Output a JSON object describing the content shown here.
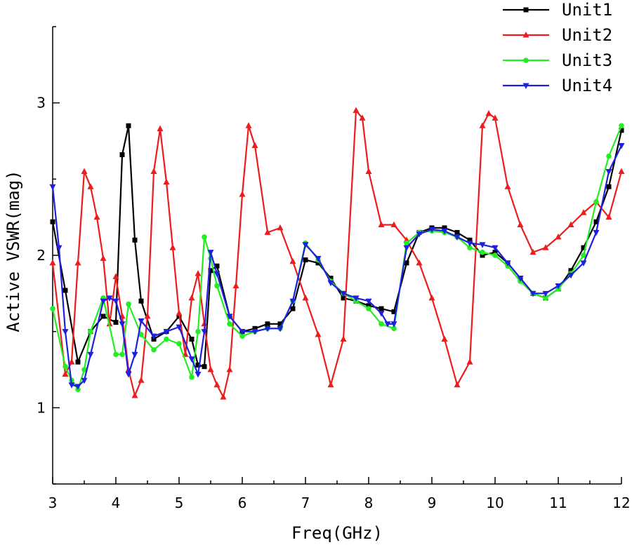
{
  "chart_data": {
    "type": "line",
    "title": "",
    "xlabel": "Freq(GHz)",
    "ylabel": "Active VSWR(mag)",
    "xlim": [
      3,
      12
    ],
    "ylim": [
      0.5,
      3.5
    ],
    "xticks": [
      3,
      4,
      5,
      6,
      7,
      8,
      9,
      10,
      11,
      12
    ],
    "xtick_labels": [
      "3",
      "4",
      "5",
      "6",
      "7",
      "8",
      "9",
      "10",
      "11",
      "12"
    ],
    "yticks": [
      1,
      2,
      3
    ],
    "ytick_labels": [
      "1",
      "2",
      "3"
    ],
    "grid": false,
    "legend_position": "top-right",
    "series": [
      {
        "name": "Unit1",
        "color": "#000000",
        "marker": "square",
        "x": [
          3.0,
          3.2,
          3.4,
          3.6,
          3.8,
          4.0,
          4.1,
          4.2,
          4.3,
          4.4,
          4.6,
          4.8,
          5.0,
          5.2,
          5.3,
          5.4,
          5.5,
          5.6,
          5.8,
          6.0,
          6.2,
          6.4,
          6.6,
          6.8,
          7.0,
          7.2,
          7.4,
          7.6,
          7.8,
          8.0,
          8.2,
          8.4,
          8.6,
          8.8,
          9.0,
          9.2,
          9.4,
          9.6,
          9.8,
          10.0,
          10.2,
          10.4,
          10.6,
          10.8,
          11.0,
          11.2,
          11.4,
          11.6,
          11.8,
          12.0
        ],
        "y": [
          2.22,
          1.77,
          1.3,
          1.5,
          1.6,
          1.56,
          2.66,
          2.85,
          2.1,
          1.7,
          1.45,
          1.5,
          1.6,
          1.45,
          1.28,
          1.27,
          1.9,
          1.93,
          1.6,
          1.5,
          1.52,
          1.55,
          1.55,
          1.65,
          1.97,
          1.95,
          1.85,
          1.72,
          1.7,
          1.67,
          1.65,
          1.63,
          1.95,
          2.15,
          2.18,
          2.18,
          2.15,
          2.1,
          2.0,
          2.02,
          1.95,
          1.85,
          1.75,
          1.72,
          1.78,
          1.9,
          2.05,
          2.22,
          2.45,
          2.82
        ]
      },
      {
        "name": "Unit2",
        "color": "#ee1c1c",
        "marker": "triangle-up",
        "x": [
          3.0,
          3.2,
          3.3,
          3.4,
          3.5,
          3.6,
          3.7,
          3.8,
          3.9,
          4.0,
          4.1,
          4.2,
          4.3,
          4.4,
          4.5,
          4.6,
          4.7,
          4.8,
          4.9,
          5.0,
          5.1,
          5.2,
          5.3,
          5.4,
          5.5,
          5.6,
          5.7,
          5.8,
          5.9,
          6.0,
          6.1,
          6.2,
          6.4,
          6.6,
          6.8,
          7.0,
          7.2,
          7.4,
          7.6,
          7.8,
          7.9,
          8.0,
          8.2,
          8.4,
          8.6,
          8.8,
          9.0,
          9.2,
          9.4,
          9.6,
          9.8,
          9.9,
          10.0,
          10.2,
          10.4,
          10.6,
          10.8,
          11.0,
          11.2,
          11.4,
          11.6,
          11.8,
          12.0
        ],
        "y": [
          1.95,
          1.22,
          1.3,
          1.95,
          2.55,
          2.45,
          2.25,
          1.98,
          1.55,
          1.86,
          1.6,
          1.25,
          1.08,
          1.18,
          1.6,
          2.55,
          2.83,
          2.48,
          2.05,
          1.62,
          1.35,
          1.72,
          1.88,
          1.55,
          1.25,
          1.15,
          1.07,
          1.25,
          1.8,
          2.4,
          2.85,
          2.72,
          2.15,
          2.18,
          1.96,
          1.72,
          1.48,
          1.15,
          1.45,
          2.95,
          2.9,
          2.55,
          2.2,
          2.2,
          2.1,
          1.95,
          1.72,
          1.45,
          1.15,
          1.3,
          2.85,
          2.93,
          2.9,
          2.45,
          2.2,
          2.02,
          2.05,
          2.12,
          2.2,
          2.28,
          2.35,
          2.25,
          2.55
        ]
      },
      {
        "name": "Unit3",
        "color": "#22ee22",
        "marker": "circle",
        "x": [
          3.0,
          3.2,
          3.3,
          3.4,
          3.5,
          3.6,
          3.8,
          4.0,
          4.1,
          4.2,
          4.4,
          4.6,
          4.8,
          5.0,
          5.2,
          5.3,
          5.4,
          5.5,
          5.6,
          5.8,
          6.0,
          6.2,
          6.4,
          6.6,
          6.8,
          7.0,
          7.2,
          7.4,
          7.6,
          7.8,
          8.0,
          8.2,
          8.4,
          8.6,
          8.8,
          9.0,
          9.2,
          9.4,
          9.6,
          9.8,
          10.0,
          10.2,
          10.4,
          10.6,
          10.8,
          11.0,
          11.2,
          11.4,
          11.6,
          11.8,
          12.0
        ],
        "y": [
          1.65,
          1.27,
          1.18,
          1.12,
          1.25,
          1.5,
          1.72,
          1.35,
          1.35,
          1.68,
          1.48,
          1.38,
          1.45,
          1.42,
          1.2,
          1.5,
          2.12,
          1.98,
          1.8,
          1.55,
          1.47,
          1.5,
          1.52,
          1.52,
          1.7,
          2.08,
          1.97,
          1.83,
          1.75,
          1.7,
          1.65,
          1.55,
          1.52,
          2.08,
          2.15,
          2.16,
          2.15,
          2.12,
          2.05,
          2.02,
          2.0,
          1.93,
          1.83,
          1.75,
          1.72,
          1.78,
          1.88,
          2.0,
          2.35,
          2.65,
          2.85
        ]
      },
      {
        "name": "Unit4",
        "color": "#1f1fe0",
        "marker": "triangle-down",
        "x": [
          3.0,
          3.1,
          3.2,
          3.3,
          3.4,
          3.5,
          3.6,
          3.8,
          3.9,
          4.0,
          4.1,
          4.2,
          4.3,
          4.4,
          4.6,
          4.8,
          5.0,
          5.2,
          5.3,
          5.4,
          5.5,
          5.6,
          5.8,
          6.0,
          6.2,
          6.4,
          6.6,
          6.8,
          7.0,
          7.2,
          7.4,
          7.6,
          7.8,
          8.0,
          8.2,
          8.3,
          8.4,
          8.6,
          8.8,
          9.0,
          9.2,
          9.4,
          9.6,
          9.8,
          10.0,
          10.2,
          10.4,
          10.6,
          10.8,
          11.0,
          11.2,
          11.4,
          11.6,
          11.8,
          12.0
        ],
        "y": [
          2.45,
          2.05,
          1.5,
          1.15,
          1.14,
          1.18,
          1.35,
          1.7,
          1.72,
          1.7,
          1.55,
          1.22,
          1.35,
          1.57,
          1.47,
          1.5,
          1.53,
          1.32,
          1.22,
          1.5,
          2.02,
          1.88,
          1.6,
          1.5,
          1.5,
          1.52,
          1.52,
          1.7,
          2.07,
          1.98,
          1.82,
          1.75,
          1.72,
          1.7,
          1.62,
          1.55,
          1.55,
          2.05,
          2.14,
          2.17,
          2.16,
          2.12,
          2.08,
          2.07,
          2.05,
          1.95,
          1.85,
          1.75,
          1.75,
          1.8,
          1.87,
          1.95,
          2.15,
          2.55,
          2.72
        ]
      }
    ]
  }
}
